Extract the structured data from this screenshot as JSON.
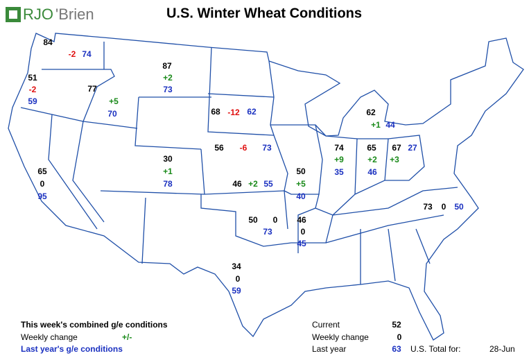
{
  "header": {
    "logo_left": "RJO",
    "logo_right": "'Brien",
    "title": "U.S. Winter Wheat Conditions"
  },
  "states": [
    {
      "current": "84",
      "change": "-2",
      "last_year": "74"
    },
    {
      "current": "51",
      "change": "-2",
      "last_year": "59"
    },
    {
      "current": "77",
      "change": "+5",
      "last_year": "70"
    },
    {
      "current": "87",
      "change": "+2",
      "last_year": "73"
    },
    {
      "current": "68",
      "change": "-12",
      "last_year": "62"
    },
    {
      "current": "56",
      "change": "-6",
      "last_year": "73"
    },
    {
      "current": "30",
      "change": "+1",
      "last_year": "78"
    },
    {
      "current": "65",
      "change": "0",
      "last_year": "95"
    },
    {
      "current": "46",
      "change": "+2",
      "last_year": "55"
    },
    {
      "current": "50",
      "change": "+5",
      "last_year": "40"
    },
    {
      "current": "74",
      "change": "+9",
      "last_year": "35"
    },
    {
      "current": "65",
      "change": "+2",
      "last_year": "46"
    },
    {
      "current": "67",
      "change": "+3",
      "last_year": "27"
    },
    {
      "current": "62",
      "change": "+1",
      "last_year": "44"
    },
    {
      "current": "73",
      "change": "0",
      "last_year": "50"
    },
    {
      "current": "50",
      "change": "0",
      "last_year": "73"
    },
    {
      "current": "46",
      "change": "0",
      "last_year": "45"
    },
    {
      "current": "34",
      "change": "0",
      "last_year": "59"
    }
  ],
  "legend": {
    "line1": "This week's combined g/e conditions",
    "line2": "Weekly change",
    "line2_sign": "+/-",
    "line3": "Last year's g/e conditions"
  },
  "summary": {
    "current_label": "Current",
    "current": "52",
    "change_label": "Weekly change",
    "change": "0",
    "last_label": "Last year",
    "last": "63",
    "total_label": "U.S. Total for:",
    "date": "28-Jun"
  }
}
